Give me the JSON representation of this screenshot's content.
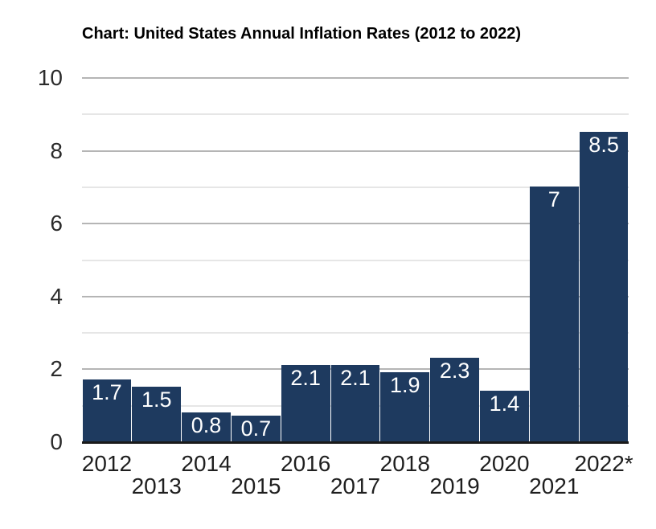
{
  "chart_data": {
    "type": "bar",
    "title": "Chart: United States Annual Inflation Rates (2012 to 2022)",
    "categories": [
      "2012",
      "2013",
      "2014",
      "2015",
      "2016",
      "2017",
      "2018",
      "2019",
      "2020",
      "2021",
      "2022*"
    ],
    "values": [
      1.7,
      1.5,
      0.8,
      0.7,
      2.1,
      2.1,
      1.9,
      2.3,
      1.4,
      7,
      8.5
    ],
    "bar_labels": [
      "1.7",
      "1.5",
      "0.8",
      "0.7",
      "2.1",
      "2.1",
      "1.9",
      "2.3",
      "1.4",
      "7",
      "8.5"
    ],
    "xlabel": "",
    "ylabel": "",
    "ylim": [
      0,
      10
    ],
    "y_ticks": [
      0,
      2,
      4,
      6,
      8,
      10
    ],
    "minor_gridline_values": [
      1,
      3,
      5,
      7,
      9
    ],
    "grid": true,
    "legend_position": "none",
    "x_label_layout": "staggered-two-rows",
    "colors": {
      "bar": "#1e3a5f",
      "bar_label_text": "#ffffff",
      "major_gridline": "#b5b5b5",
      "minor_gridline": "#e6e6e6",
      "axis_line": "#1a1a1a",
      "tick_text": "#2b2b2b",
      "title_text": "#000000",
      "background": "#ffffff"
    }
  }
}
